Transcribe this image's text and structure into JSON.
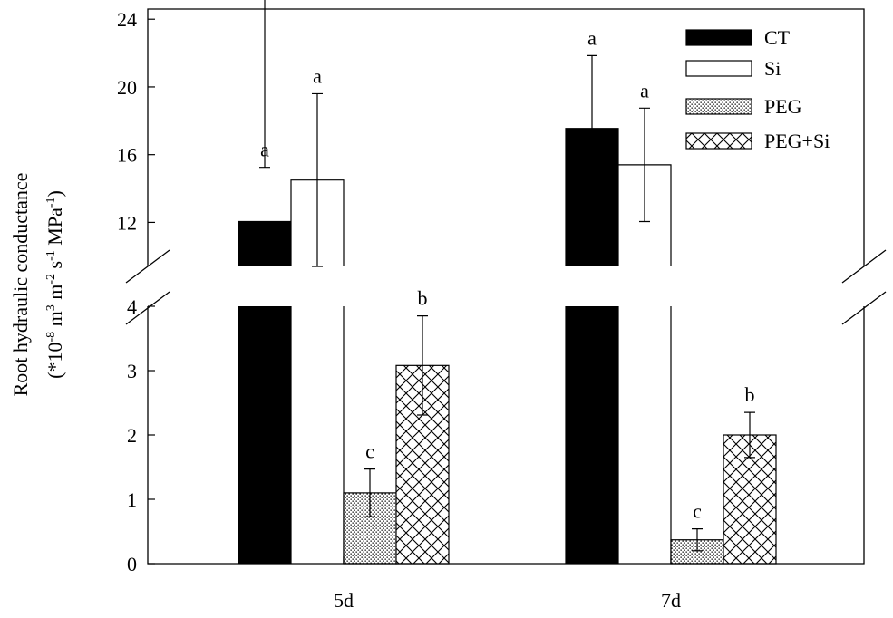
{
  "chart_data": {
    "type": "bar",
    "categories": [
      "5d",
      "7d"
    ],
    "series": [
      {
        "name": "CT",
        "pattern": "solid",
        "values": [
          12.05,
          17.55
        ],
        "errors": [
          3.2,
          4.3
        ],
        "letters": [
          "a",
          "a"
        ]
      },
      {
        "name": "Si",
        "pattern": "open",
        "values": [
          14.5,
          15.4
        ],
        "errors": [
          5.1,
          3.35
        ],
        "letters": [
          "a",
          "a"
        ]
      },
      {
        "name": "PEG",
        "pattern": "dots",
        "values": [
          1.1,
          0.37
        ],
        "errors": [
          0.37,
          0.17
        ],
        "letters": [
          "c",
          "c"
        ]
      },
      {
        "name": "PEG+Si",
        "pattern": "crosshatch",
        "values": [
          3.08,
          2.0
        ],
        "errors": [
          0.77,
          0.35
        ],
        "letters": [
          "b",
          "b"
        ]
      }
    ],
    "ylabel_line1": "Root hydraulic conductance",
    "ylabel_line2": {
      "base": "(*10",
      "exp1": "-8",
      "t2": " m",
      "exp2": "3",
      "t3": " m",
      "exp3": "-2",
      "t4": " s",
      "exp4": "-1",
      "t5": " MPa",
      "exp5": "-1",
      "t6": ")"
    },
    "xlabel": "",
    "axis_break": true,
    "y_lower": {
      "range": [
        0,
        4
      ],
      "ticks": [
        "0",
        "1",
        "2",
        "3",
        "4"
      ],
      "tick_values": [
        0,
        1,
        2,
        3,
        4
      ]
    },
    "y_upper": {
      "range": [
        9.4,
        24.6
      ],
      "ticks": [
        "12",
        "16",
        "20",
        "24"
      ],
      "tick_values": [
        12,
        16,
        20,
        24
      ]
    },
    "legend_position": "top-right",
    "grid": false
  }
}
